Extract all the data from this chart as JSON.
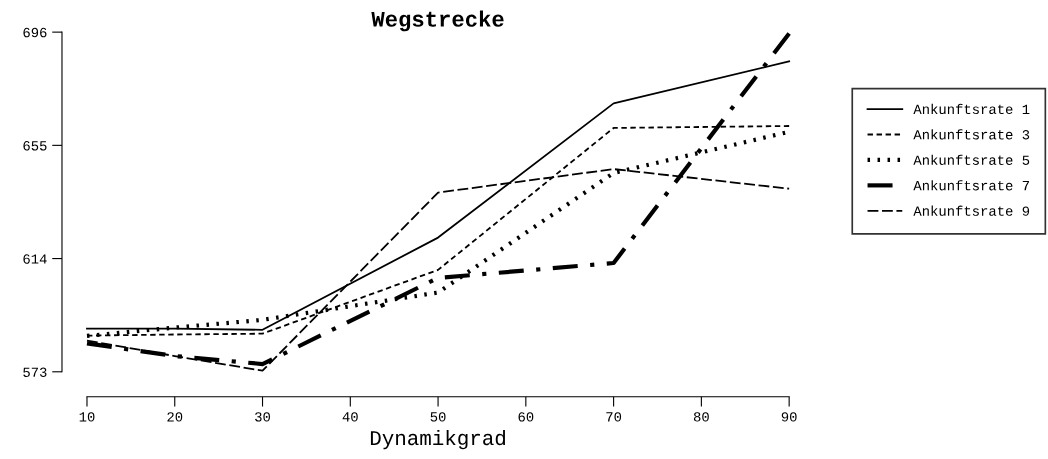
{
  "chart_data": {
    "type": "line",
    "title": "Wegstrecke",
    "xlabel": "Dynamikgrad",
    "x": [
      10,
      20,
      30,
      50,
      70,
      90
    ],
    "series": [
      {
        "name": "Ankunftsrate 1",
        "color": "#000000",
        "line_style": "solid",
        "values": [
          588.6,
          588.6,
          588.2,
          621.6,
          670.2,
          685.4
        ]
      },
      {
        "name": "Ankunftsrate 3",
        "color": "#000000",
        "line_style": "dashed",
        "values": [
          586.1,
          586.5,
          586.8,
          609.9,
          661.3,
          662.0
        ]
      },
      {
        "name": "Ankunftsrate 5",
        "color": "#000000",
        "line_style": "dotted",
        "values": [
          586.0,
          589.0,
          591.8,
          601.7,
          645.0,
          659.9
        ]
      },
      {
        "name": "Ankunftsrate 7",
        "color": "#000000",
        "line_style": "dashdot",
        "values": [
          583.3,
          578.7,
          575.8,
          607.0,
          612.4,
          695.5
        ]
      },
      {
        "name": "Ankunftsrate 9",
        "color": "#000000",
        "line_style": "longdash",
        "values": [
          584.3,
          578.7,
          573.4,
          637.9,
          646.4,
          639.3
        ]
      }
    ],
    "xlim": [
      10,
      90
    ],
    "ylim": [
      573,
      696
    ],
    "xticks": [
      10,
      20,
      30,
      40,
      50,
      60,
      70,
      80,
      90
    ],
    "yticks": [
      573,
      614,
      655,
      696
    ],
    "grid": false,
    "legend": "right",
    "marker": "none"
  }
}
